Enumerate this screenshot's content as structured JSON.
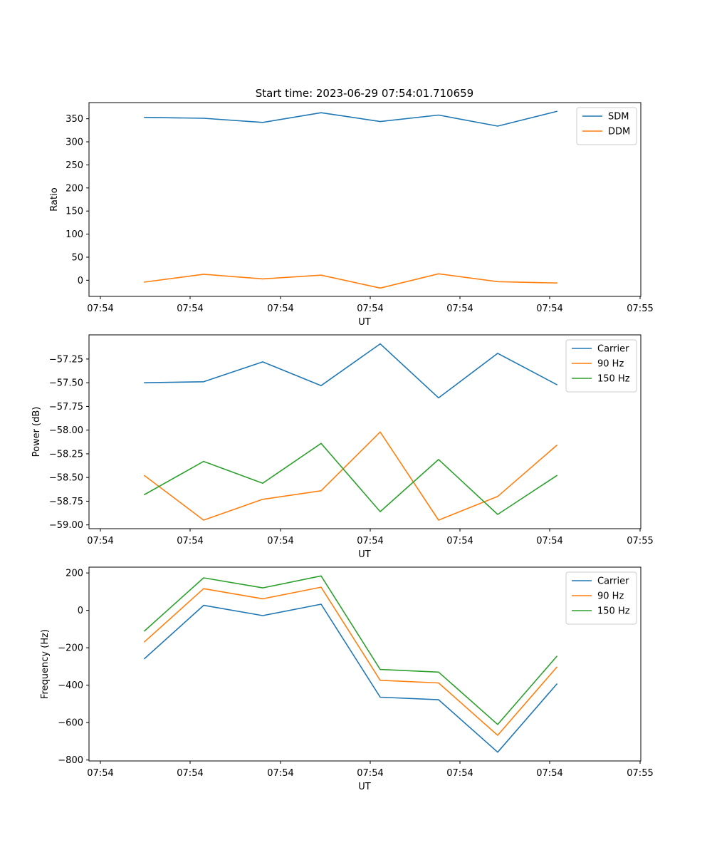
{
  "figure": {
    "title": "Start time: 2023-06-29 07:54:01.710659"
  },
  "chart_data": [
    {
      "type": "line",
      "xlabel": "UT",
      "ylabel": "Ratio",
      "x_tick_labels": [
        "07:54",
        "07:54",
        "07:54",
        "07:54",
        "07:54",
        "07:54",
        "07:55"
      ],
      "y_ticks": [
        0,
        50,
        100,
        150,
        200,
        250,
        300,
        350
      ],
      "y_tick_labels": [
        "0",
        "50",
        "100",
        "150",
        "200",
        "250",
        "300",
        "350"
      ],
      "ylim": [
        -35,
        385
      ],
      "legend_position": "top-right",
      "series": [
        {
          "name": "SDM",
          "color": "#1f77b4",
          "values": [
            353,
            351,
            342,
            363,
            344,
            358,
            334,
            366
          ]
        },
        {
          "name": "DDM",
          "color": "#ff7f0e",
          "values": [
            -4,
            13,
            3,
            11,
            -17,
            14,
            -3,
            -6
          ]
        }
      ]
    },
    {
      "type": "line",
      "xlabel": "UT",
      "ylabel": "Power (dB)",
      "x_tick_labels": [
        "07:54",
        "07:54",
        "07:54",
        "07:54",
        "07:54",
        "07:54",
        "07:55"
      ],
      "y_ticks": [
        -59.0,
        -58.75,
        -58.5,
        -58.25,
        -58.0,
        -57.75,
        -57.5,
        -57.25
      ],
      "y_tick_labels": [
        "−59.00",
        "−58.75",
        "−58.50",
        "−58.25",
        "−58.00",
        "−57.75",
        "−57.50",
        "−57.25"
      ],
      "ylim": [
        -59.04,
        -56.995
      ],
      "legend_position": "top-right",
      "series": [
        {
          "name": "Carrier",
          "color": "#1f77b4",
          "values": [
            -57.5,
            -57.49,
            -57.28,
            -57.53,
            -57.09,
            -57.66,
            -57.19,
            -57.52
          ]
        },
        {
          "name": "90 Hz",
          "color": "#ff7f0e",
          "values": [
            -58.48,
            -58.95,
            -58.73,
            -58.64,
            -58.02,
            -58.95,
            -58.7,
            -58.16
          ]
        },
        {
          "name": "150 Hz",
          "color": "#2ca02c",
          "values": [
            -58.68,
            -58.33,
            -58.56,
            -58.14,
            -58.86,
            -58.31,
            -58.89,
            -58.48
          ]
        }
      ]
    },
    {
      "type": "line",
      "xlabel": "UT",
      "ylabel": "Frequency (Hz)",
      "x_tick_labels": [
        "07:54",
        "07:54",
        "07:54",
        "07:54",
        "07:54",
        "07:54",
        "07:55"
      ],
      "y_ticks": [
        -800,
        -600,
        -400,
        -200,
        0,
        200
      ],
      "y_tick_labels": [
        "−800",
        "−600",
        "−400",
        "−200",
        "0",
        "200"
      ],
      "ylim": [
        -805,
        231
      ],
      "legend_position": "top-right",
      "series": [
        {
          "name": "Carrier",
          "color": "#1f77b4",
          "values": [
            -258,
            27,
            -28,
            33,
            -464,
            -478,
            -758,
            -394
          ]
        },
        {
          "name": "90 Hz",
          "color": "#ff7f0e",
          "values": [
            -168,
            116,
            62,
            124,
            -374,
            -388,
            -668,
            -304
          ]
        },
        {
          "name": "150 Hz",
          "color": "#2ca02c",
          "values": [
            -110,
            174,
            120,
            184,
            -316,
            -330,
            -610,
            -246
          ]
        }
      ]
    }
  ]
}
